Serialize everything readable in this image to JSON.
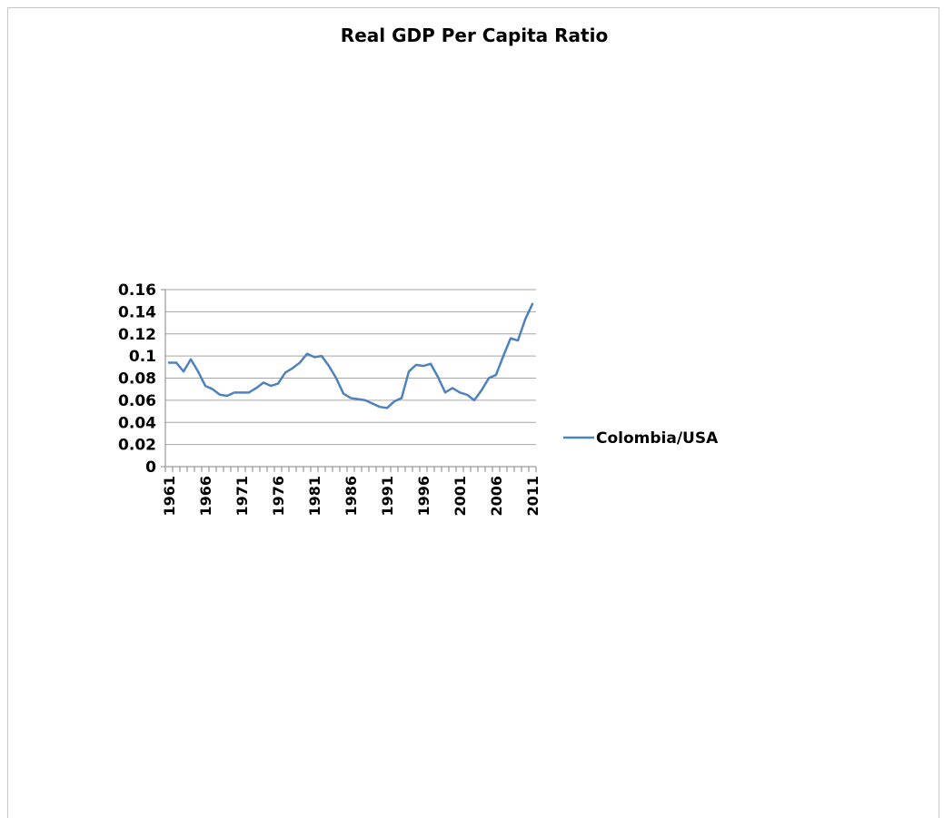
{
  "chart_data": {
    "type": "line",
    "title": "Real GDP Per Capita Ratio",
    "xlabel": "",
    "ylabel": "",
    "ylim": [
      0,
      0.16
    ],
    "yticks": [
      "0",
      "0.02",
      "0.04",
      "0.06",
      "0.08",
      "0.1",
      "0.12",
      "0.14",
      "0.16"
    ],
    "xtick_labels": [
      "1961",
      "1966",
      "1971",
      "1976",
      "1981",
      "1986",
      "1991",
      "1996",
      "2001",
      "2006",
      "2011"
    ],
    "grid": true,
    "legend_position": "right",
    "colors": {
      "series": "#4f81bd",
      "grid": "#a6a6a6",
      "axis": "#868686"
    },
    "x": [
      1961,
      1962,
      1963,
      1964,
      1965,
      1966,
      1967,
      1968,
      1969,
      1970,
      1971,
      1972,
      1973,
      1974,
      1975,
      1976,
      1977,
      1978,
      1979,
      1980,
      1981,
      1982,
      1983,
      1984,
      1985,
      1986,
      1987,
      1988,
      1989,
      1990,
      1991,
      1992,
      1993,
      1994,
      1995,
      1996,
      1997,
      1998,
      1999,
      2000,
      2001,
      2002,
      2003,
      2004,
      2005,
      2006,
      2007,
      2008,
      2009,
      2010,
      2011
    ],
    "series": [
      {
        "name": "Colombia/USA",
        "values": [
          0.094,
          0.094,
          0.086,
          0.097,
          0.086,
          0.073,
          0.07,
          0.065,
          0.064,
          0.067,
          0.067,
          0.067,
          0.071,
          0.076,
          0.073,
          0.075,
          0.085,
          0.089,
          0.094,
          0.102,
          0.099,
          0.1,
          0.091,
          0.08,
          0.066,
          0.062,
          0.061,
          0.06,
          0.057,
          0.054,
          0.053,
          0.059,
          0.062,
          0.086,
          0.092,
          0.091,
          0.093,
          0.081,
          0.067,
          0.071,
          0.067,
          0.065,
          0.06,
          0.069,
          0.08,
          0.083,
          0.1,
          0.116,
          0.114,
          0.133,
          0.147
        ]
      }
    ]
  }
}
